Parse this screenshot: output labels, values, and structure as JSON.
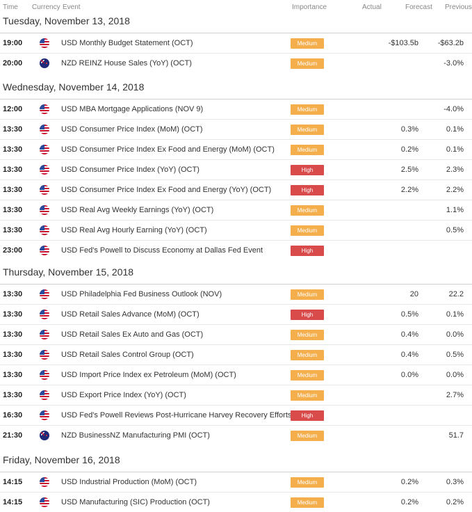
{
  "header": {
    "time": "Time",
    "currency": "Currency",
    "event": "Event",
    "importance": "Importance",
    "actual": "Actual",
    "forecast": "Forecast",
    "previous": "Previous"
  },
  "colors": {
    "medium": "#f4ae4c",
    "high": "#d94b4b"
  },
  "days": [
    {
      "label": "Tuesday, November 13, 2018",
      "rows": [
        {
          "time": "19:00",
          "flag": "us-flag-icon",
          "event": "USD Monthly Budget Statement (OCT)",
          "importance": "Medium",
          "actual": "",
          "forecast": "-$103.5b",
          "previous": "-$63.2b"
        },
        {
          "time": "20:00",
          "flag": "nz-flag-icon",
          "event": "NZD REINZ House Sales (YoY) (OCT)",
          "importance": "Medium",
          "actual": "",
          "forecast": "",
          "previous": "-3.0%"
        }
      ]
    },
    {
      "label": "Wednesday, November 14, 2018",
      "rows": [
        {
          "time": "12:00",
          "flag": "us-flag-icon",
          "event": "USD MBA Mortgage Applications (NOV 9)",
          "importance": "Medium",
          "actual": "",
          "forecast": "",
          "previous": "-4.0%"
        },
        {
          "time": "13:30",
          "flag": "us-flag-icon",
          "event": "USD Consumer Price Index (MoM) (OCT)",
          "importance": "Medium",
          "actual": "",
          "forecast": "0.3%",
          "previous": "0.1%"
        },
        {
          "time": "13:30",
          "flag": "us-flag-icon",
          "event": "USD Consumer Price Index Ex Food and Energy (MoM) (OCT)",
          "importance": "Medium",
          "actual": "",
          "forecast": "0.2%",
          "previous": "0.1%"
        },
        {
          "time": "13:30",
          "flag": "us-flag-icon",
          "event": "USD Consumer Price Index (YoY) (OCT)",
          "importance": "High",
          "actual": "",
          "forecast": "2.5%",
          "previous": "2.3%"
        },
        {
          "time": "13:30",
          "flag": "us-flag-icon",
          "event": "USD Consumer Price Index Ex Food and Energy (YoY) (OCT)",
          "importance": "High",
          "actual": "",
          "forecast": "2.2%",
          "previous": "2.2%"
        },
        {
          "time": "13:30",
          "flag": "us-flag-icon",
          "event": "USD Real Avg Weekly Earnings (YoY) (OCT)",
          "importance": "Medium",
          "actual": "",
          "forecast": "",
          "previous": "1.1%"
        },
        {
          "time": "13:30",
          "flag": "us-flag-icon",
          "event": "USD Real Avg Hourly Earning (YoY) (OCT)",
          "importance": "Medium",
          "actual": "",
          "forecast": "",
          "previous": "0.5%"
        },
        {
          "time": "23:00",
          "flag": "us-flag-icon",
          "event": "USD Fed's Powell to Discuss Economy at Dallas Fed Event",
          "importance": "High",
          "actual": "",
          "forecast": "",
          "previous": ""
        }
      ]
    },
    {
      "label": "Thursday, November 15, 2018",
      "rows": [
        {
          "time": "13:30",
          "flag": "us-flag-icon",
          "event": "USD Philadelphia Fed Business Outlook (NOV)",
          "importance": "Medium",
          "actual": "",
          "forecast": "20",
          "previous": "22.2"
        },
        {
          "time": "13:30",
          "flag": "us-flag-icon",
          "event": "USD Retail Sales Advance (MoM) (OCT)",
          "importance": "High",
          "actual": "",
          "forecast": "0.5%",
          "previous": "0.1%"
        },
        {
          "time": "13:30",
          "flag": "us-flag-icon",
          "event": "USD Retail Sales Ex Auto and Gas (OCT)",
          "importance": "Medium",
          "actual": "",
          "forecast": "0.4%",
          "previous": "0.0%"
        },
        {
          "time": "13:30",
          "flag": "us-flag-icon",
          "event": "USD Retail Sales Control Group (OCT)",
          "importance": "Medium",
          "actual": "",
          "forecast": "0.4%",
          "previous": "0.5%"
        },
        {
          "time": "13:30",
          "flag": "us-flag-icon",
          "event": "USD Import Price Index ex Petroleum (MoM) (OCT)",
          "importance": "Medium",
          "actual": "",
          "forecast": "0.0%",
          "previous": "0.0%"
        },
        {
          "time": "13:30",
          "flag": "us-flag-icon",
          "event": "USD Export Price Index (YoY) (OCT)",
          "importance": "Medium",
          "actual": "",
          "forecast": "",
          "previous": "2.7%"
        },
        {
          "time": "16:30",
          "flag": "us-flag-icon",
          "event": "USD Fed's Powell Reviews Post-Hurricane Harvey Recovery Efforts",
          "importance": "High",
          "actual": "",
          "forecast": "",
          "previous": ""
        },
        {
          "time": "21:30",
          "flag": "nz-flag-icon",
          "event": "NZD BusinessNZ Manufacturing PMI (OCT)",
          "importance": "Medium",
          "actual": "",
          "forecast": "",
          "previous": "51.7"
        }
      ]
    },
    {
      "label": "Friday, November 16, 2018",
      "rows": [
        {
          "time": "14:15",
          "flag": "us-flag-icon",
          "event": "USD Industrial Production (MoM) (OCT)",
          "importance": "Medium",
          "actual": "",
          "forecast": "0.2%",
          "previous": "0.3%"
        },
        {
          "time": "14:15",
          "flag": "us-flag-icon",
          "event": "USD Manufacturing (SIC) Production (OCT)",
          "importance": "Medium",
          "actual": "",
          "forecast": "0.2%",
          "previous": "0.2%"
        }
      ]
    }
  ]
}
